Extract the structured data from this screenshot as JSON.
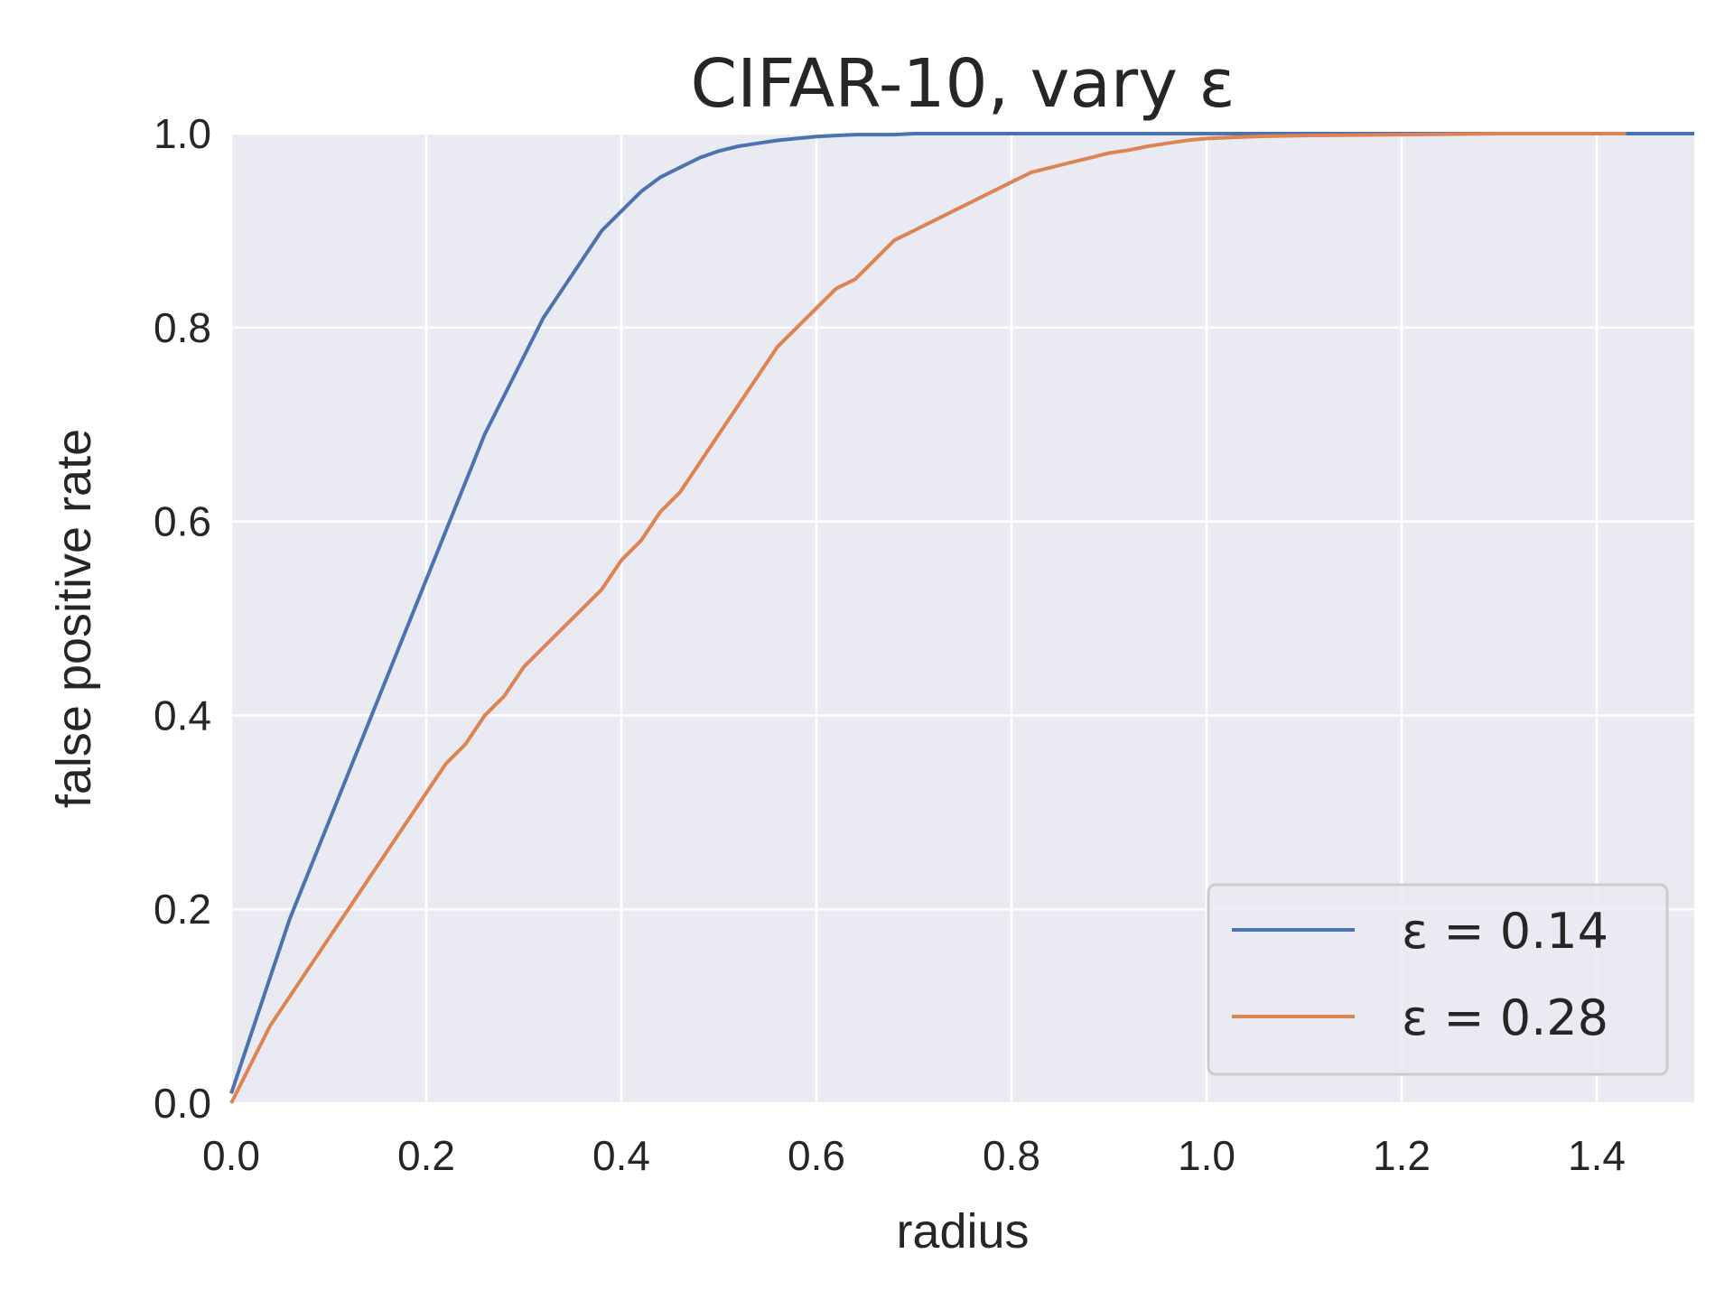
{
  "chart_data": {
    "type": "line",
    "title": "CIFAR-10, vary ε",
    "xlabel": "radius",
    "ylabel": "false positive rate",
    "xlim": [
      0,
      1.5
    ],
    "ylim": [
      0,
      1.0
    ],
    "xticks": [
      "0.0",
      "0.2",
      "0.4",
      "0.6",
      "0.8",
      "1.0",
      "1.2",
      "1.4"
    ],
    "yticks": [
      "0.0",
      "0.2",
      "0.4",
      "0.6",
      "0.8",
      "1.0"
    ],
    "grid": true,
    "legend_position": "lower-right",
    "colors": {
      "background": "#eaeaf2",
      "grid": "#ffffff",
      "legend_border": "#cccccc"
    },
    "series": [
      {
        "name": "ε = 0.14",
        "color": "#4c72b0",
        "x": [
          0,
          0.02,
          0.04,
          0.06,
          0.08,
          0.1,
          0.12,
          0.14,
          0.16,
          0.18,
          0.2,
          0.22,
          0.24,
          0.26,
          0.28,
          0.3,
          0.32,
          0.34,
          0.36,
          0.38,
          0.4,
          0.42,
          0.44,
          0.46,
          0.48,
          0.5,
          0.52,
          0.54,
          0.56,
          0.58,
          0.6,
          0.62,
          0.64,
          0.66,
          0.68,
          0.7,
          0.72,
          0.75,
          0.78,
          0.8,
          1.0,
          1.2,
          1.5
        ],
        "y": [
          0.01,
          0.07,
          0.13,
          0.19,
          0.24,
          0.29,
          0.34,
          0.39,
          0.44,
          0.49,
          0.54,
          0.59,
          0.64,
          0.69,
          0.73,
          0.77,
          0.81,
          0.84,
          0.87,
          0.9,
          0.92,
          0.94,
          0.955,
          0.965,
          0.975,
          0.982,
          0.987,
          0.99,
          0.993,
          0.995,
          0.997,
          0.998,
          0.999,
          0.999,
          0.999,
          1.0,
          1.0,
          1.0,
          1.0,
          1.0,
          1.0,
          1.0,
          1.0
        ]
      },
      {
        "name": "ε = 0.28",
        "color": "#dd8452",
        "x": [
          0,
          0.02,
          0.04,
          0.06,
          0.08,
          0.1,
          0.12,
          0.14,
          0.16,
          0.18,
          0.2,
          0.22,
          0.24,
          0.26,
          0.28,
          0.3,
          0.32,
          0.34,
          0.36,
          0.38,
          0.4,
          0.42,
          0.44,
          0.46,
          0.48,
          0.5,
          0.52,
          0.54,
          0.56,
          0.58,
          0.6,
          0.62,
          0.64,
          0.66,
          0.68,
          0.7,
          0.72,
          0.74,
          0.76,
          0.78,
          0.8,
          0.82,
          0.84,
          0.86,
          0.88,
          0.9,
          0.92,
          0.94,
          0.96,
          0.98,
          1.0,
          1.05,
          1.1,
          1.2,
          1.3,
          1.43
        ],
        "y": [
          0.0,
          0.04,
          0.08,
          0.11,
          0.14,
          0.17,
          0.2,
          0.23,
          0.26,
          0.29,
          0.32,
          0.35,
          0.37,
          0.4,
          0.42,
          0.45,
          0.47,
          0.49,
          0.51,
          0.53,
          0.56,
          0.58,
          0.61,
          0.63,
          0.66,
          0.69,
          0.72,
          0.75,
          0.78,
          0.8,
          0.82,
          0.84,
          0.85,
          0.87,
          0.89,
          0.9,
          0.91,
          0.92,
          0.93,
          0.94,
          0.95,
          0.96,
          0.965,
          0.97,
          0.975,
          0.98,
          0.983,
          0.987,
          0.99,
          0.993,
          0.995,
          0.997,
          0.998,
          0.999,
          1.0,
          1.0
        ]
      }
    ]
  }
}
